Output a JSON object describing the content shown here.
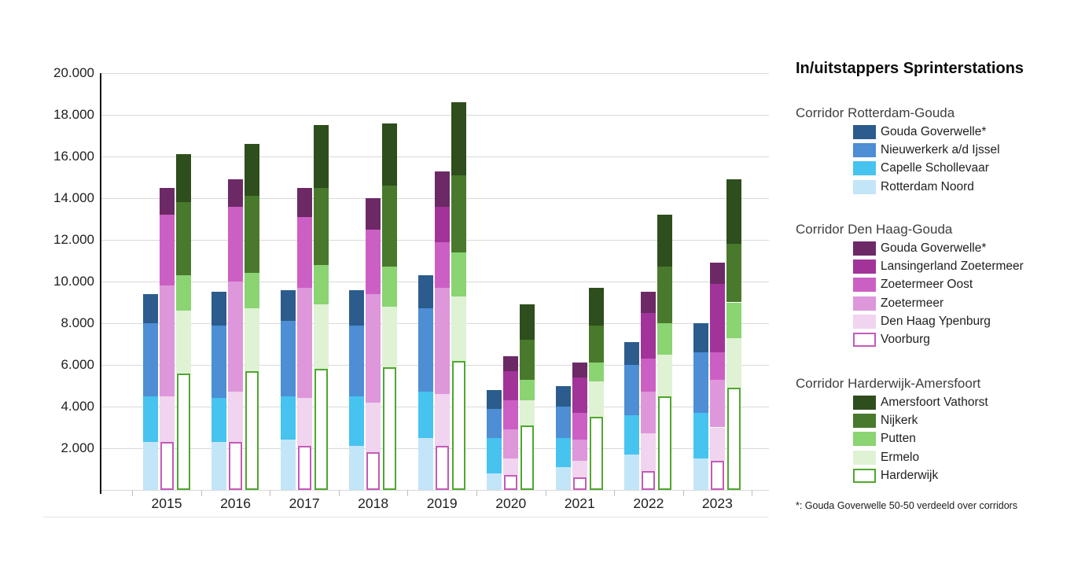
{
  "title": "In/uitstappers Sprinterstations",
  "footnote": "*: Gouda Goverwelle 50-50 verdeeld over corridors",
  "y_axis": {
    "tick_labels": [
      "2.000",
      "4.000",
      "6.000",
      "8.000",
      "10.000",
      "12.000",
      "14.000",
      "16.000",
      "18.000",
      "20.000"
    ],
    "max": 20000,
    "step": 2000
  },
  "chart_data": {
    "type": "bar",
    "stacked": true,
    "title": "In/uitstappers Sprinterstations",
    "categories": [
      "2015",
      "2016",
      "2017",
      "2018",
      "2019",
      "2020",
      "2021",
      "2022",
      "2023"
    ],
    "ylim": [
      0,
      20000
    ],
    "grid": true,
    "legend_position": "right",
    "groups": [
      {
        "name": "Corridor Rotterdam-Gouda",
        "series": [
          {
            "name": "Rotterdam Noord",
            "color": "#C3E5F8",
            "style": "fill",
            "values": [
              2300,
              2300,
              2400,
              2100,
              2500,
              800,
              1100,
              1700,
              1500
            ]
          },
          {
            "name": "Capelle Schollevaar",
            "color": "#47C3F0",
            "style": "fill",
            "values": [
              2200,
              2100,
              2100,
              2400,
              2200,
              1700,
              1400,
              1900,
              2200
            ]
          },
          {
            "name": "Nieuwerkerk a/d Ijssel",
            "color": "#4D8ED4",
            "style": "fill",
            "values": [
              3500,
              3500,
              3600,
              3400,
              4000,
              1400,
              1500,
              2400,
              2900
            ]
          },
          {
            "name": "Gouda Goverwelle*",
            "color": "#2B5C8D",
            "style": "fill",
            "values": [
              1400,
              1600,
              1500,
              1700,
              1600,
              900,
              1000,
              1100,
              1400
            ]
          }
        ]
      },
      {
        "name": "Corridor Den Haag-Gouda",
        "series": [
          {
            "name": "Voorburg",
            "color": "#C45AB8",
            "style": "outline",
            "values": [
              2300,
              2300,
              2100,
              1800,
              2100,
              700,
              600,
              900,
              1400
            ]
          },
          {
            "name": "Den Haag Ypenburg",
            "color": "#F1D4EF",
            "style": "fill",
            "values": [
              2200,
              2400,
              2300,
              2400,
              2500,
              800,
              800,
              1800,
              1600
            ]
          },
          {
            "name": "Zoetermeer",
            "color": "#DD97DA",
            "style": "fill",
            "values": [
              5300,
              5300,
              5300,
              5200,
              5100,
              1400,
              1000,
              2000,
              2300
            ]
          },
          {
            "name": "Zoetermeer Oost",
            "color": "#CC5FC4",
            "style": "fill",
            "values": [
              3400,
              3600,
              3400,
              3100,
              2200,
              1400,
              1300,
              1600,
              1300
            ]
          },
          {
            "name": "Lansingerland Zoetermeer",
            "color": "#A13399",
            "style": "fill",
            "values": [
              0,
              0,
              0,
              0,
              1700,
              1400,
              1700,
              2200,
              3300
            ]
          },
          {
            "name": "Gouda Goverwelle*",
            "color": "#6C2966",
            "style": "fill",
            "values": [
              1300,
              1300,
              1400,
              1500,
              1700,
              700,
              700,
              1000,
              1000
            ]
          }
        ]
      },
      {
        "name": "Corridor Harderwijk-Amersfoort",
        "series": [
          {
            "name": "Harderwijk",
            "color": "#4EA72E",
            "style": "outline",
            "values": [
              5600,
              5700,
              5800,
              5900,
              6200,
              3100,
              3500,
              4500,
              4900
            ]
          },
          {
            "name": "Ermelo",
            "color": "#DFF2D4",
            "style": "fill",
            "values": [
              3000,
              3000,
              3100,
              2900,
              3100,
              1200,
              1700,
              2000,
              2400
            ]
          },
          {
            "name": "Putten",
            "color": "#8AD472",
            "style": "fill",
            "values": [
              1700,
              1700,
              1900,
              1900,
              2100,
              1000,
              900,
              1500,
              1700
            ]
          },
          {
            "name": "Nijkerk",
            "color": "#49792C",
            "style": "fill",
            "values": [
              3500,
              3700,
              3700,
              3900,
              3700,
              1900,
              1800,
              2700,
              2800
            ]
          },
          {
            "name": "Amersfoort Vathorst",
            "color": "#2E4E1D",
            "style": "fill",
            "values": [
              2300,
              2500,
              3000,
              3000,
              3500,
              1700,
              1800,
              2500,
              3100
            ]
          }
        ]
      }
    ]
  },
  "colors": {
    "gridline": "#d9d9d9",
    "axis": "#111111",
    "text": "#212121"
  }
}
